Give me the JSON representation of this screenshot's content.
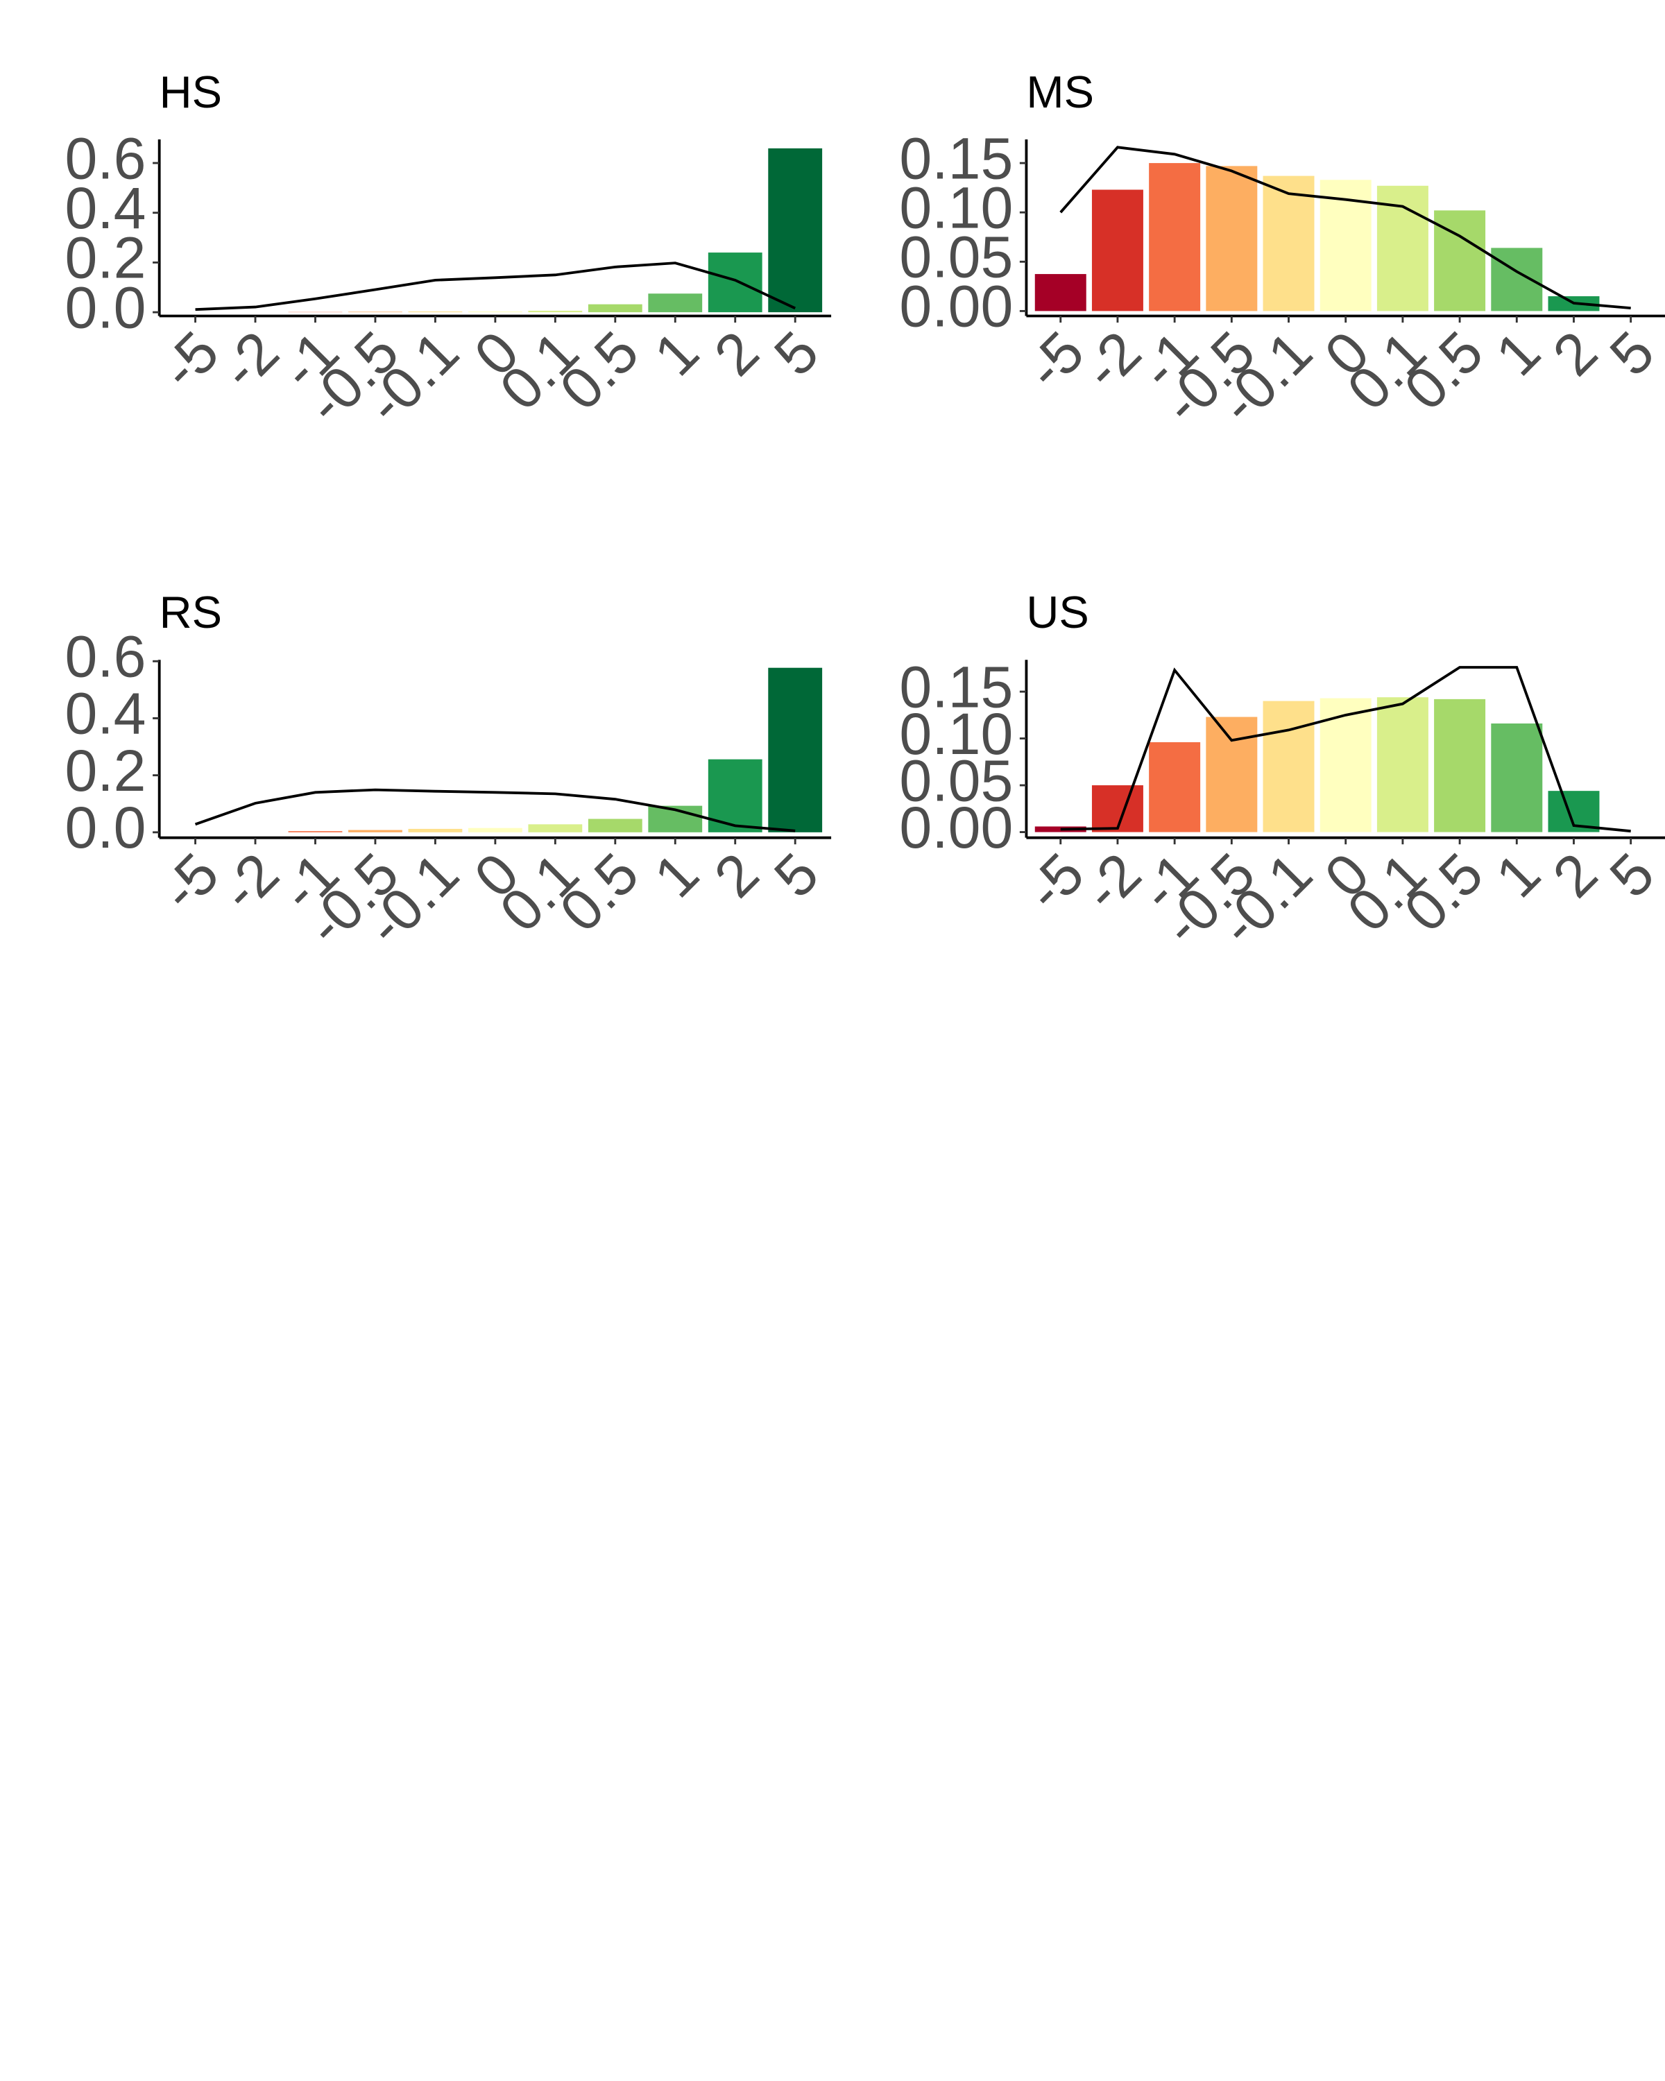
{
  "chart_data": [
    {
      "type": "bar",
      "title": "HS",
      "categories": [
        "-5",
        "-2",
        "-1",
        "-0.5",
        "-0.1",
        "0",
        "0.1",
        "0.5",
        "1",
        "2",
        "5"
      ],
      "values": [
        0,
        0,
        0.001,
        0.002,
        0.003,
        0.003,
        0.006,
        0.032,
        0.075,
        0.24,
        0.659
      ],
      "line_values": [
        0.011,
        0.021,
        0.054,
        0.091,
        0.129,
        0.139,
        0.15,
        0.182,
        0.198,
        0.129,
        0.016
      ],
      "colors": [
        "#a50026",
        "#d73027",
        "#f46d43",
        "#fdae61",
        "#fee08b",
        "#ffffbf",
        "#d9ef8b",
        "#a6d96a",
        "#66bd63",
        "#1a9850",
        "#006837"
      ],
      "line_color": "#000000",
      "ylim": [
        -0.015,
        0.695
      ],
      "yticks": [
        {
          "value": 0,
          "label": "0.0"
        },
        {
          "value": 0.2,
          "label": "0.2"
        },
        {
          "value": 0.4,
          "label": "0.4"
        },
        {
          "value": 0.6,
          "label": "0.6"
        }
      ]
    },
    {
      "type": "bar",
      "title": "MS",
      "categories": [
        "-5",
        "-2",
        "-1",
        "-0.5",
        "-0.1",
        "0",
        "0.1",
        "0.5",
        "1",
        "2",
        "5"
      ],
      "values": [
        0.0375,
        0.123,
        0.15,
        0.147,
        0.137,
        0.133,
        0.127,
        0.102,
        0.064,
        0.015,
        0
      ],
      "line_values": [
        0.1,
        0.166,
        0.159,
        0.142,
        0.119,
        0.113,
        0.106,
        0.076,
        0.04,
        0.008,
        0.003
      ],
      "colors": [
        "#a50026",
        "#d73027",
        "#f46d43",
        "#fdae61",
        "#fee08b",
        "#ffffbf",
        "#d9ef8b",
        "#a6d96a",
        "#66bd63",
        "#1a9850",
        "#006837"
      ],
      "line_color": "#000000",
      "ylim": [
        -0.005,
        0.174
      ],
      "yticks": [
        {
          "value": 0,
          "label": "0.00"
        },
        {
          "value": 0.05,
          "label": "0.05"
        },
        {
          "value": 0.1,
          "label": "0.10"
        },
        {
          "value": 0.15,
          "label": "0.15"
        }
      ]
    },
    {
      "type": "bar",
      "title": "RS",
      "categories": [
        "-5",
        "-2",
        "-1",
        "-0.5",
        "-0.1",
        "0",
        "0.1",
        "0.5",
        "1",
        "2",
        "5"
      ],
      "values": [
        0,
        0,
        0.004,
        0.008,
        0.012,
        0.015,
        0.028,
        0.047,
        0.093,
        0.256,
        0.577
      ],
      "line_values": [
        0.028,
        0.102,
        0.14,
        0.149,
        0.144,
        0.14,
        0.135,
        0.116,
        0.079,
        0.023,
        0.005
      ],
      "colors": [
        "#a50026",
        "#d73027",
        "#f46d43",
        "#fdae61",
        "#fee08b",
        "#ffffbf",
        "#d9ef8b",
        "#a6d96a",
        "#66bd63",
        "#1a9850",
        "#006837"
      ],
      "line_color": "#000000",
      "ylim": [
        -0.019,
        0.605
      ],
      "yticks": [
        {
          "value": 0,
          "label": "0.0"
        },
        {
          "value": 0.2,
          "label": "0.2"
        },
        {
          "value": 0.4,
          "label": "0.4"
        },
        {
          "value": 0.6,
          "label": "0.6"
        }
      ]
    },
    {
      "type": "bar",
      "title": "US",
      "categories": [
        "-5",
        "-2",
        "-1",
        "-0.5",
        "-0.1",
        "0",
        "0.1",
        "0.5",
        "1",
        "2",
        "5"
      ],
      "values": [
        0.006,
        0.05,
        0.096,
        0.123,
        0.14,
        0.143,
        0.144,
        0.142,
        0.116,
        0.044,
        0
      ],
      "line_values": [
        0.003,
        0.004,
        0.173,
        0.098,
        0.109,
        0.125,
        0.137,
        0.176,
        0.176,
        0.007,
        0.001
      ],
      "colors": [
        "#a50026",
        "#d73027",
        "#f46d43",
        "#fdae61",
        "#fee08b",
        "#ffffbf",
        "#d9ef8b",
        "#a6d96a",
        "#66bd63",
        "#1a9850",
        "#006837"
      ],
      "line_color": "#000000",
      "ylim": [
        -0.006,
        0.184
      ],
      "yticks": [
        {
          "value": 0,
          "label": "0.00"
        },
        {
          "value": 0.05,
          "label": "0.05"
        },
        {
          "value": 0.1,
          "label": "0.10"
        },
        {
          "value": 0.15,
          "label": "0.15"
        }
      ]
    }
  ]
}
